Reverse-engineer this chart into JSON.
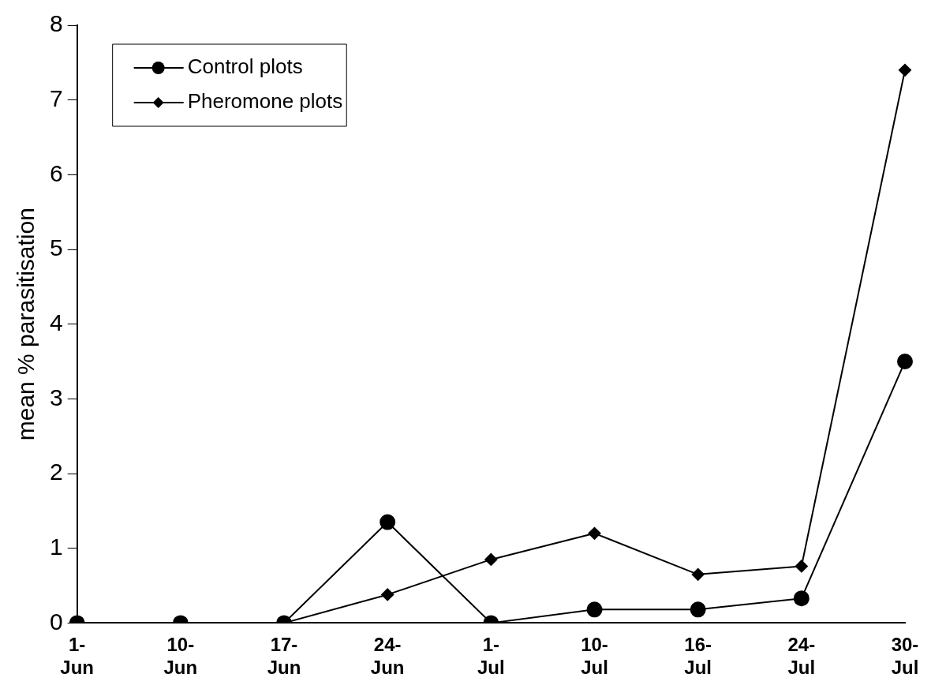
{
  "chart_data": {
    "type": "line",
    "ylabel": "mean % parasitisation",
    "categories": [
      "1-Jun",
      "10-Jun",
      "17-Jun",
      "24-Jun",
      "1-Jul",
      "10-Jul",
      "16-Jul",
      "24-Jul",
      "30-Jul"
    ],
    "series": [
      {
        "name": "Control plots",
        "color": "#000000",
        "marker": "circle",
        "values": [
          0,
          0,
          0,
          1.35,
          0,
          0.18,
          0.18,
          0.33,
          3.5
        ]
      },
      {
        "name": "Pheromone plots",
        "color": "#000000",
        "marker": "diamond",
        "values": [
          null,
          null,
          0,
          0.38,
          0.85,
          1.2,
          0.65,
          0.76,
          7.4
        ]
      }
    ],
    "ylim": [
      0,
      8
    ],
    "yticks": [
      0,
      1,
      2,
      3,
      4,
      5,
      6,
      7,
      8
    ],
    "grid": false,
    "legend": "top left"
  }
}
